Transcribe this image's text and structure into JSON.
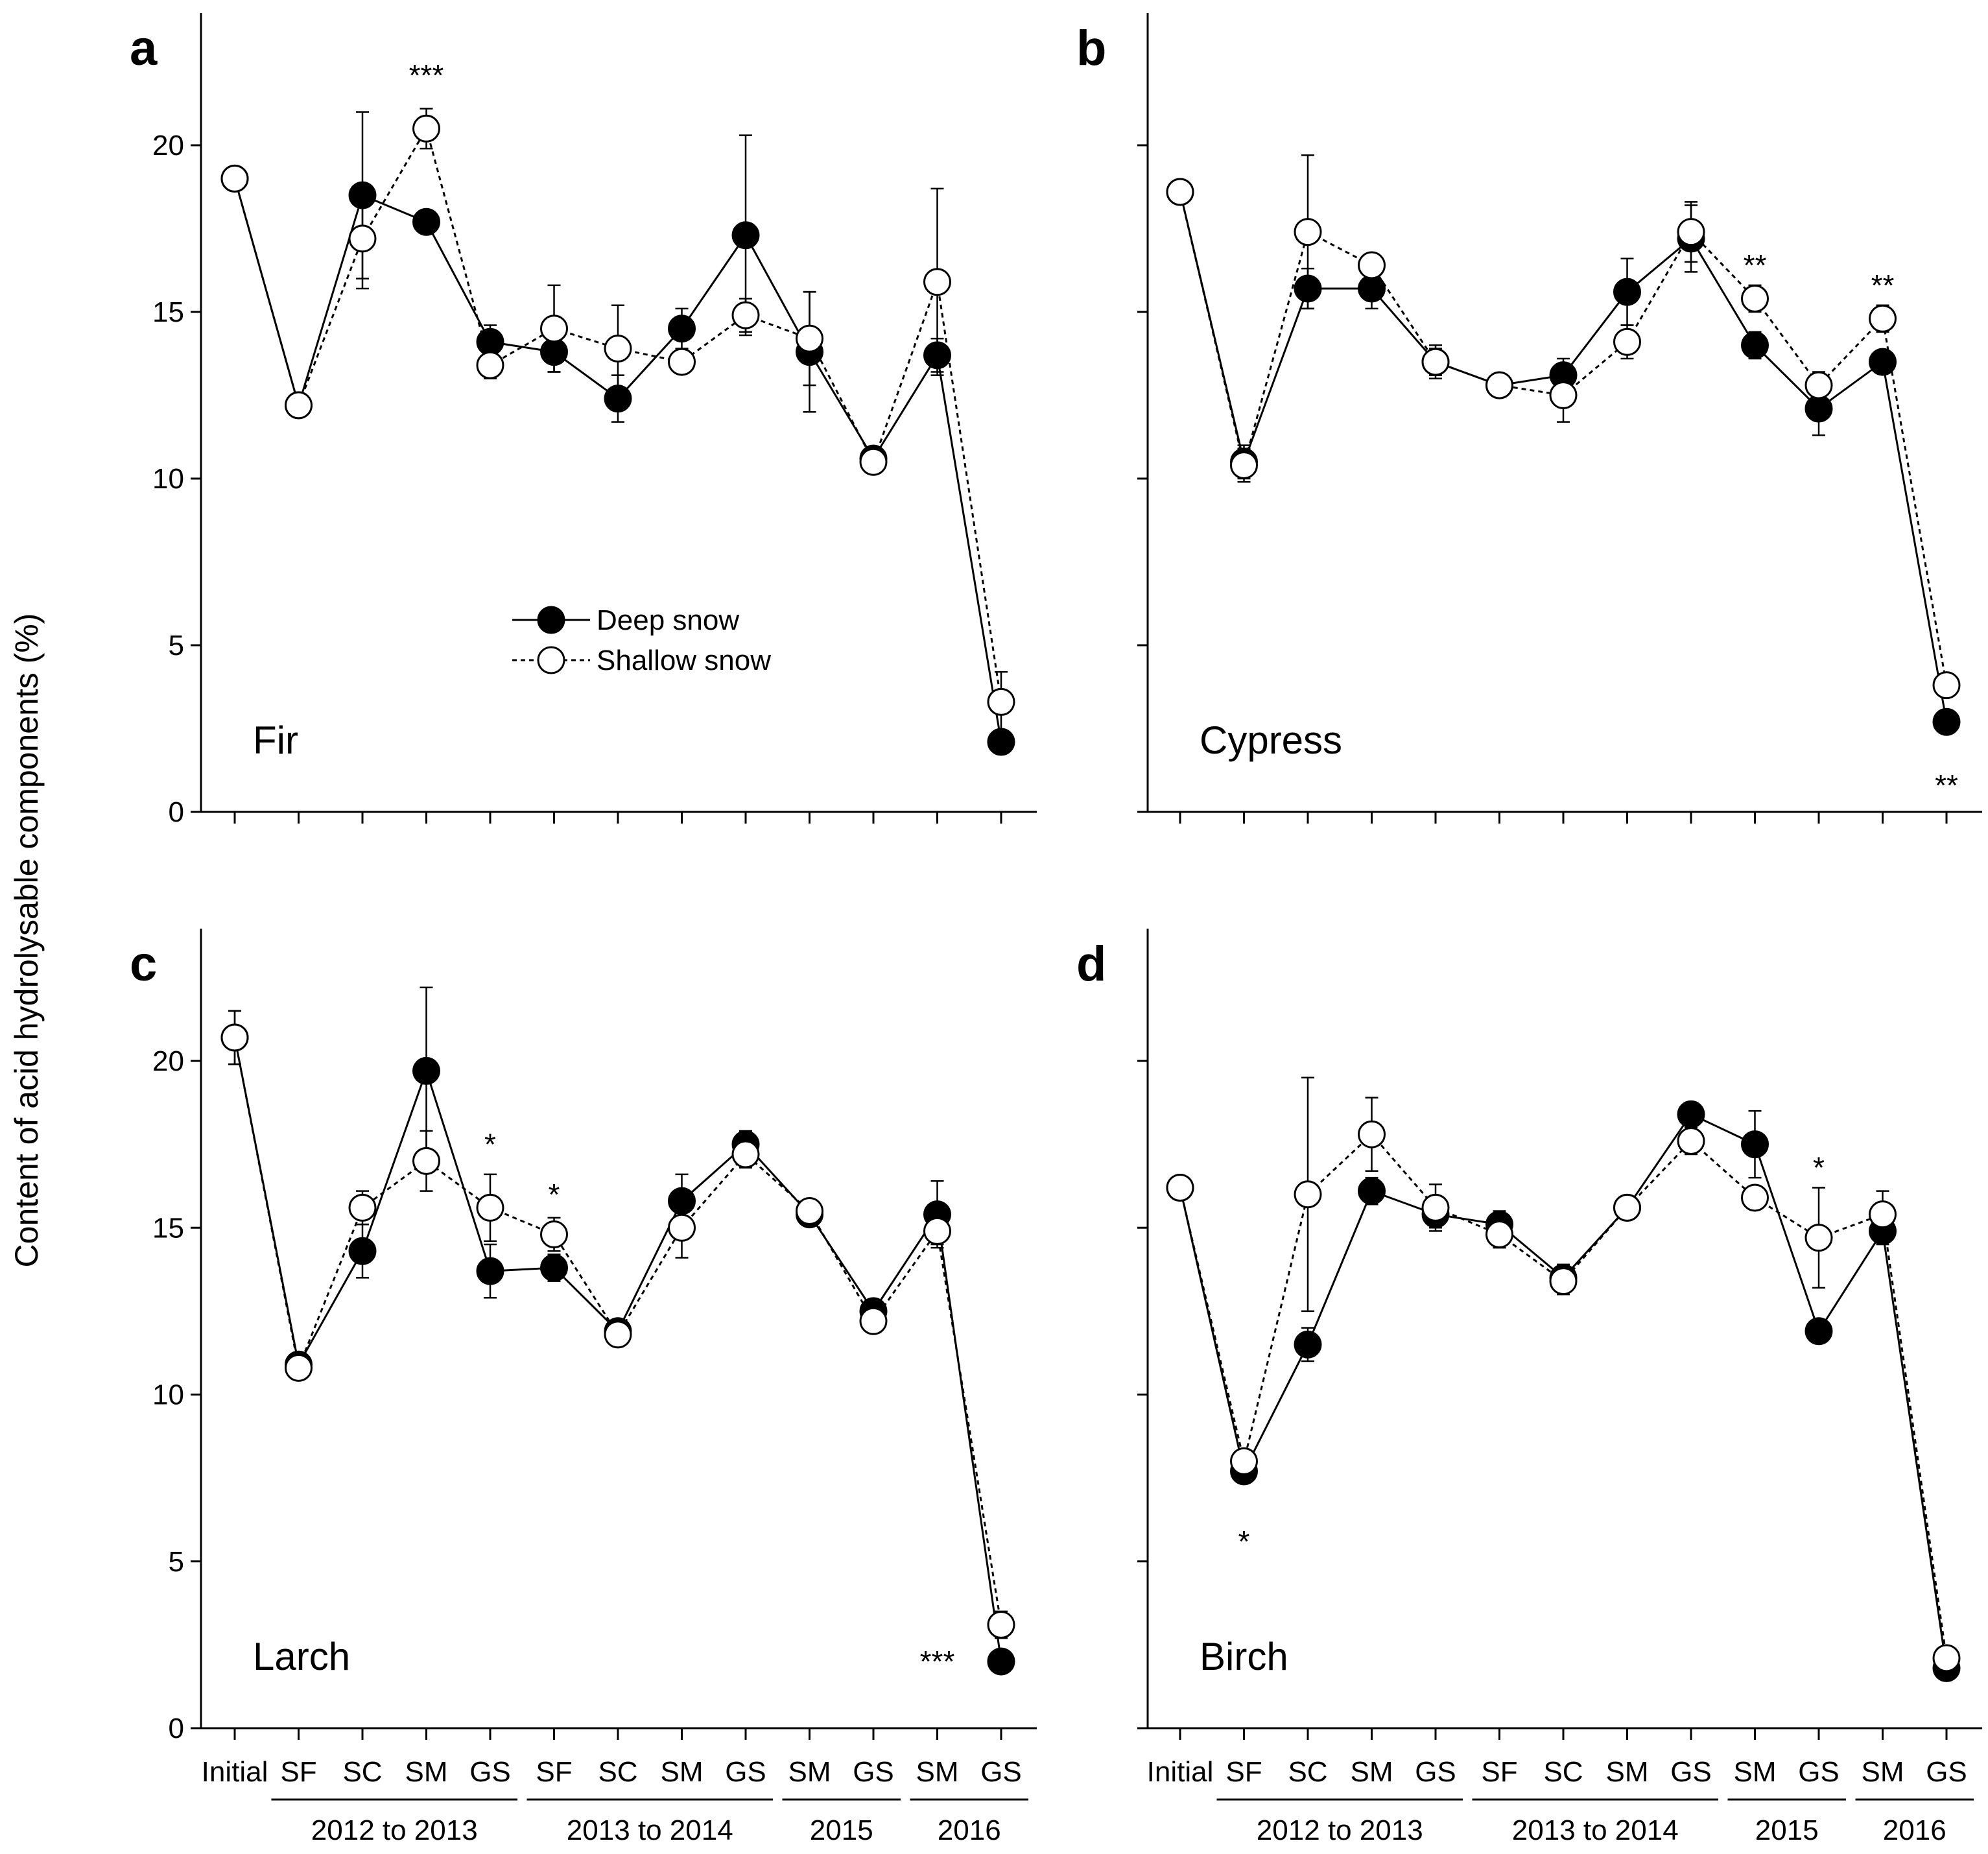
{
  "ylabel": "Content of acid hydrolysable components (%)",
  "yticks": [
    0,
    5,
    10,
    15,
    20
  ],
  "ylim": [
    0,
    24
  ],
  "categories": [
    "Initial",
    "SF",
    "SC",
    "SM",
    "GS",
    "SF",
    "SC",
    "SM",
    "GS",
    "SM",
    "GS",
    "SM",
    "GS"
  ],
  "year_groups": [
    {
      "label": "2012 to 2013",
      "from": 1,
      "to": 4
    },
    {
      "label": "2013 to 2014",
      "from": 5,
      "to": 8
    },
    {
      "label": "2015",
      "from": 9,
      "to": 10
    },
    {
      "label": "2016",
      "from": 11,
      "to": 12
    }
  ],
  "legend": {
    "deep": "Deep snow",
    "shallow": "Shallow snow"
  },
  "colors": {
    "deep": "#000000",
    "shallow": "#ffffff",
    "axis": "#000000"
  },
  "chart_data": [
    {
      "type": "line",
      "panel_label": "a",
      "species": "Fir",
      "categories": [
        "Initial",
        "SF",
        "SC",
        "SM",
        "GS",
        "SF",
        "SC",
        "SM",
        "GS",
        "SM",
        "GS",
        "SM",
        "GS"
      ],
      "series": [
        {
          "name": "Deep snow",
          "values": [
            19.0,
            12.2,
            18.5,
            17.7,
            14.1,
            13.8,
            12.4,
            14.5,
            17.3,
            13.8,
            10.6,
            13.7,
            2.1
          ],
          "err": [
            0.3,
            0.3,
            2.5,
            0.3,
            0.5,
            0.6,
            0.7,
            0.6,
            3.0,
            1.8,
            0.3,
            0.5,
            0.3
          ]
        },
        {
          "name": "Shallow snow",
          "values": [
            19.0,
            12.2,
            17.2,
            20.5,
            13.4,
            14.5,
            13.9,
            13.5,
            14.9,
            14.2,
            10.5,
            15.9,
            3.3
          ],
          "err": [
            0.3,
            0.3,
            1.5,
            0.6,
            0.4,
            1.3,
            1.3,
            0.3,
            0.5,
            1.4,
            0.3,
            2.8,
            0.9
          ]
        }
      ],
      "annotations": [
        {
          "text": "***",
          "index": 3,
          "value": 22.1
        }
      ]
    },
    {
      "type": "line",
      "panel_label": "b",
      "species": "Cypress",
      "categories": [
        "Initial",
        "SF",
        "SC",
        "SM",
        "GS",
        "SF",
        "SC",
        "SM",
        "GS",
        "SM",
        "GS",
        "SM",
        "GS"
      ],
      "series": [
        {
          "name": "Deep snow",
          "values": [
            18.6,
            10.5,
            15.7,
            15.7,
            13.5,
            12.8,
            13.1,
            15.6,
            17.2,
            14.0,
            12.1,
            13.5,
            2.7
          ],
          "err": [
            0.2,
            0.5,
            0.6,
            0.6,
            0.5,
            0.3,
            0.5,
            1.0,
            1.0,
            0.4,
            0.8,
            0.3,
            0.2
          ]
        },
        {
          "name": "Shallow snow",
          "values": [
            18.6,
            10.4,
            17.4,
            16.4,
            13.5,
            12.8,
            12.5,
            14.1,
            17.4,
            15.4,
            12.8,
            14.8,
            3.8
          ],
          "err": [
            0.2,
            0.5,
            2.3,
            0.3,
            0.4,
            0.3,
            0.8,
            0.5,
            0.9,
            0.4,
            0.4,
            0.4,
            0.3
          ]
        }
      ],
      "annotations": [
        {
          "text": "**",
          "index": 9,
          "value": 16.4
        },
        {
          "text": "**",
          "index": 11,
          "value": 15.8
        },
        {
          "text": "**",
          "index": 12,
          "value": 0.8
        }
      ]
    },
    {
      "type": "line",
      "panel_label": "c",
      "species": "Larch",
      "categories": [
        "Initial",
        "SF",
        "SC",
        "SM",
        "GS",
        "SF",
        "SC",
        "SM",
        "GS",
        "SM",
        "GS",
        "SM",
        "GS"
      ],
      "series": [
        {
          "name": "Deep snow",
          "values": [
            20.7,
            10.9,
            14.3,
            19.7,
            13.7,
            13.8,
            11.9,
            15.8,
            17.5,
            15.4,
            12.5,
            15.4,
            2.0
          ],
          "err": [
            0.8,
            0.3,
            0.8,
            2.5,
            0.8,
            0.4,
            0.3,
            0.8,
            0.4,
            0.3,
            0.3,
            1.0,
            0.2
          ]
        },
        {
          "name": "Shallow snow",
          "values": [
            20.7,
            10.8,
            15.6,
            17.0,
            15.6,
            14.8,
            11.8,
            15.0,
            17.2,
            15.5,
            12.2,
            14.9,
            3.1
          ],
          "err": [
            0.8,
            0.3,
            0.5,
            0.9,
            1.0,
            0.5,
            0.3,
            0.9,
            0.4,
            0.3,
            0.3,
            0.4,
            0.4
          ]
        }
      ],
      "annotations": [
        {
          "text": "*",
          "index": 4,
          "value": 17.5
        },
        {
          "text": "*",
          "index": 5,
          "value": 16.0
        },
        {
          "text": "***",
          "index": 11,
          "value": 2.0
        }
      ]
    },
    {
      "type": "line",
      "panel_label": "d",
      "species": "Birch",
      "categories": [
        "Initial",
        "SF",
        "SC",
        "SM",
        "GS",
        "SF",
        "SC",
        "SM",
        "GS",
        "SM",
        "GS",
        "SM",
        "GS"
      ],
      "series": [
        {
          "name": "Deep snow",
          "values": [
            16.2,
            7.7,
            11.5,
            16.1,
            15.4,
            15.1,
            13.5,
            15.6,
            18.4,
            17.5,
            11.9,
            14.9,
            1.8
          ],
          "err": [
            0.2,
            0.3,
            0.5,
            0.4,
            0.4,
            0.4,
            0.4,
            0.3,
            0.3,
            1.0,
            0.3,
            0.4,
            0.2
          ]
        },
        {
          "name": "Shallow snow",
          "values": [
            16.2,
            8.0,
            16.0,
            17.8,
            15.6,
            14.8,
            13.4,
            15.6,
            17.6,
            15.9,
            14.7,
            15.4,
            2.1
          ],
          "err": [
            0.2,
            0.3,
            3.5,
            1.1,
            0.7,
            0.4,
            0.4,
            0.3,
            0.4,
            0.3,
            1.5,
            0.7,
            0.2
          ]
        }
      ],
      "annotations": [
        {
          "text": "*",
          "index": 1,
          "value": 5.6
        },
        {
          "text": "*",
          "index": 10,
          "value": 16.8
        }
      ]
    }
  ]
}
